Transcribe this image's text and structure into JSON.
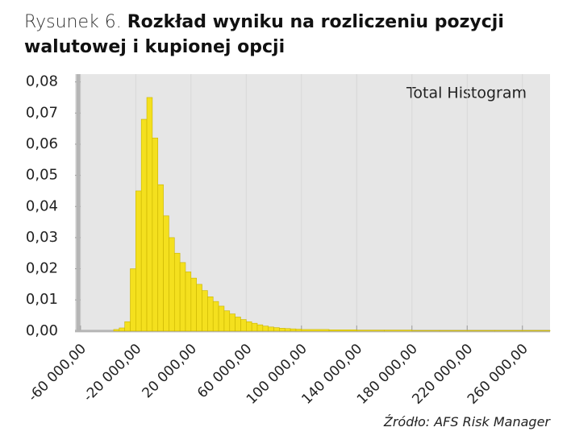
{
  "chart_data": {
    "type": "histogram",
    "title_prefix": "Rysunek 6.",
    "title": "Rozkład wyniku na rozliczeniu pozycji walutowej i kupionej opcji",
    "annotation": "Total Histogram",
    "source": "Źródło: AFS Risk Manager",
    "color": "#f4e01e",
    "bins": [
      -36000,
      -32000,
      -28000,
      -24000,
      -20000,
      -16000,
      -12000,
      -8000,
      -4000,
      0,
      4000,
      8000,
      12000,
      16000,
      20000,
      24000,
      28000,
      32000,
      36000,
      40000,
      44000,
      48000,
      52000,
      56000,
      60000,
      64000,
      68000,
      72000,
      76000,
      80000,
      84000,
      88000,
      92000,
      96000,
      100000,
      120000,
      140000,
      160000,
      180000,
      200000,
      220000,
      240000,
      260000,
      280000
    ],
    "values": [
      0.0005,
      0.001,
      0.003,
      0.02,
      0.045,
      0.068,
      0.075,
      0.062,
      0.047,
      0.037,
      0.03,
      0.025,
      0.022,
      0.019,
      0.017,
      0.015,
      0.013,
      0.011,
      0.0095,
      0.008,
      0.0065,
      0.0055,
      0.0045,
      0.0037,
      0.003,
      0.0025,
      0.002,
      0.0016,
      0.0013,
      0.0011,
      0.0009,
      0.0008,
      0.0007,
      0.0006,
      0.0005,
      0.0004,
      0.0003,
      0.0003,
      0.0002,
      0.0002,
      0.0002,
      0.0002,
      0.0002
    ],
    "xlim": [
      -64000,
      280000
    ],
    "ylim": [
      -0.0003,
      0.0825
    ],
    "xticks": [
      {
        "value": -60000,
        "label": "-60 000,00"
      },
      {
        "value": -20000,
        "label": "-20 000,00"
      },
      {
        "value": 20000,
        "label": "20 000,00"
      },
      {
        "value": 60000,
        "label": "60 000,00"
      },
      {
        "value": 100000,
        "label": "100 000,00"
      },
      {
        "value": 140000,
        "label": "140 000,00"
      },
      {
        "value": 180000,
        "label": "180 000,00"
      },
      {
        "value": 220000,
        "label": "220 000,00"
      },
      {
        "value": 260000,
        "label": "260 000,00"
      }
    ],
    "yticks": [
      {
        "value": 0,
        "label": "0,00"
      },
      {
        "value": 0.01,
        "label": "0,01"
      },
      {
        "value": 0.02,
        "label": "0,02"
      },
      {
        "value": 0.03,
        "label": "0,03"
      },
      {
        "value": 0.04,
        "label": "0,04"
      },
      {
        "value": 0.05,
        "label": "0,05"
      },
      {
        "value": 0.06,
        "label": "0,06"
      },
      {
        "value": 0.07,
        "label": "0,07"
      },
      {
        "value": 0.08,
        "label": "0,08"
      }
    ]
  }
}
